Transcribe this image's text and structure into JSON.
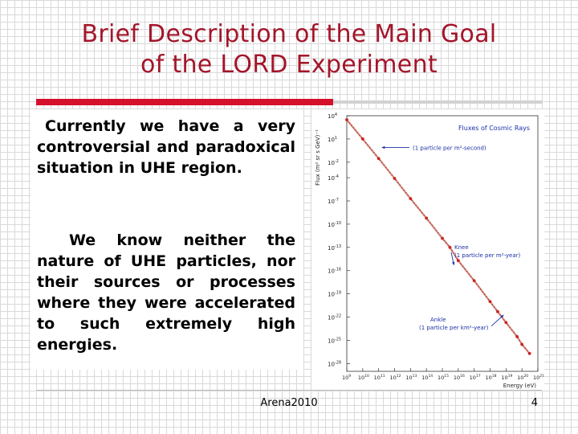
{
  "slide": {
    "title_line1": "Brief Description of the Main Goal",
    "title_line2": "of the LORD Experiment",
    "paragraph1": "Currently we have a very controversial and paradoxical situation in UHE region.",
    "paragraph2": "We know neither the nature of UHE particles, nor their sources or processes where they were accelerated to such extremely high energies.",
    "footer_center": "Arena2010",
    "page_number": "4",
    "accent_color": "#a3152a",
    "rule_color": "#d4102a"
  },
  "chart_data": {
    "type": "scatter",
    "title": "Fluxes of Cosmic Rays",
    "xlabel": "Energy (eV)",
    "ylabel": "Flux (m² sr s GeV)⁻¹",
    "x_scale": "log",
    "y_scale": "log",
    "xlim": [
      1000000000.0,
      1e+21
    ],
    "ylim": [
      1e-29,
      10000.0
    ],
    "x_ticks": [
      {
        "value": 1000000000.0,
        "base": "10",
        "exp": "9"
      },
      {
        "value": 10000000000.0,
        "base": "10",
        "exp": "10"
      },
      {
        "value": 100000000000.0,
        "base": "10",
        "exp": "11"
      },
      {
        "value": 1000000000000.0,
        "base": "10",
        "exp": "12"
      },
      {
        "value": 10000000000000.0,
        "base": "10",
        "exp": "13"
      },
      {
        "value": 100000000000000.0,
        "base": "10",
        "exp": "14"
      },
      {
        "value": 1000000000000000.0,
        "base": "10",
        "exp": "15"
      },
      {
        "value": 1e+16,
        "base": "10",
        "exp": "16"
      },
      {
        "value": 1e+17,
        "base": "10",
        "exp": "17"
      },
      {
        "value": 1e+18,
        "base": "10",
        "exp": "18"
      },
      {
        "value": 1e+19,
        "base": "10",
        "exp": "19"
      },
      {
        "value": 1e+20,
        "base": "10",
        "exp": "20"
      },
      {
        "value": 1e+21,
        "base": "10",
        "exp": "21"
      }
    ],
    "y_ticks": [
      {
        "value": 10000.0,
        "base": "10",
        "exp": "4"
      },
      {
        "value": 10.0,
        "base": "10",
        "exp": "1"
      },
      {
        "value": 0.01,
        "base": "10",
        "exp": "-2"
      },
      {
        "value": 0.0001,
        "base": "10",
        "exp": "-4"
      },
      {
        "value": 1e-07,
        "base": "10",
        "exp": "-7"
      },
      {
        "value": 1e-10,
        "base": "10",
        "exp": "-10"
      },
      {
        "value": 1e-13,
        "base": "10",
        "exp": "-13"
      },
      {
        "value": 1e-16,
        "base": "10",
        "exp": "-16"
      },
      {
        "value": 1e-19,
        "base": "10",
        "exp": "-19"
      },
      {
        "value": 1e-22,
        "base": "10",
        "exp": "-22"
      },
      {
        "value": 1e-25,
        "base": "10",
        "exp": "-25"
      },
      {
        "value": 1e-28,
        "base": "10",
        "exp": "-28"
      }
    ],
    "annotations": [
      {
        "name": "per-second",
        "text": "(1 particle per m²-second)",
        "x": 100000000000.0,
        "y": 1.0
      },
      {
        "name": "knee-label",
        "text": "Knee",
        "x": 3000000000000000.0,
        "y": 1e-13
      },
      {
        "name": "knee-rate",
        "text": "(1 particle per m²-year)",
        "x": 3000000000000000.0,
        "y": 1e-13
      },
      {
        "name": "ankle-label",
        "text": "Ankle",
        "x": 5e+18,
        "y": 1e-24
      },
      {
        "name": "ankle-rate",
        "text": "(1 particle per km²-year)",
        "x": 5e+18,
        "y": 1e-24
      }
    ],
    "series": [
      {
        "values": [
          [
            1000000000.0,
            3000.0
          ],
          [
            10000000000.0,
            10.0
          ],
          [
            100000000000.0,
            0.03
          ],
          [
            1000000000000.0,
            8e-05
          ],
          [
            10000000000000.0,
            2e-07
          ],
          [
            100000000000000.0,
            6e-10
          ],
          [
            1000000000000000.0,
            1.5e-12
          ],
          [
            3000000000000000.0,
            1e-13
          ],
          [
            1e+16,
            2e-15
          ],
          [
            1e+17,
            5e-18
          ],
          [
            1e+18,
            1e-20
          ],
          [
            3e+18,
            5e-22
          ],
          [
            1e+19,
            2e-23
          ],
          [
            5e+19,
            3e-25
          ],
          [
            1e+20,
            3e-26
          ],
          [
            3e+20,
            2e-27
          ]
        ]
      }
    ],
    "colors": {
      "data": "#cc2222",
      "fit": "#2a8a2a",
      "arrow": "#1a2fa6",
      "text": "#1a2fa6"
    }
  }
}
